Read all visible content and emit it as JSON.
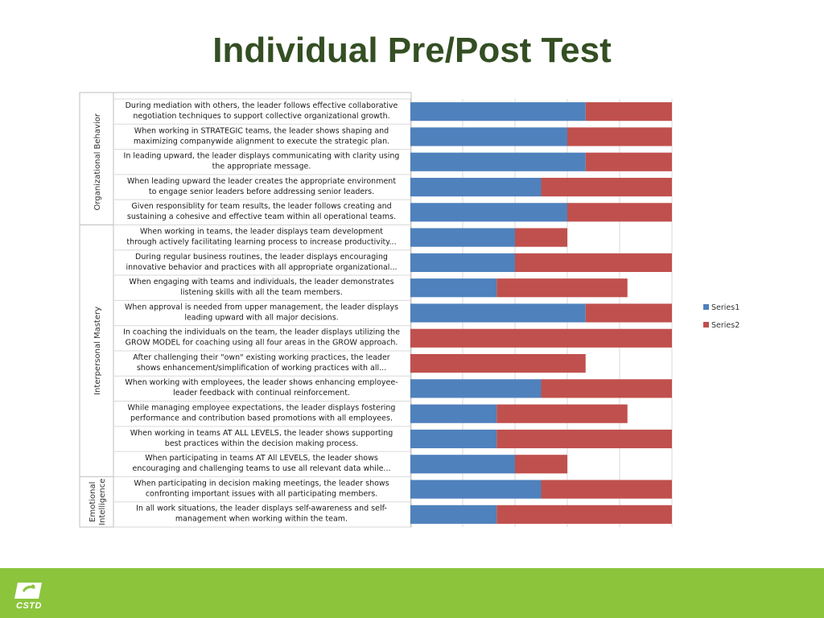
{
  "slide": {
    "title": "Individual Pre/Post Test"
  },
  "footer": {
    "logo_text": "CSTD"
  },
  "colors": {
    "series1": "#4f81bd",
    "series2": "#c0504d",
    "title": "#344f23",
    "footer": "#8cc43c"
  },
  "chart_data": {
    "type": "bar",
    "orientation": "horizontal",
    "stacked": true,
    "xlim": [
      0,
      10
    ],
    "x_ticks": [
      0,
      2,
      4,
      6,
      8,
      10
    ],
    "grid": true,
    "legend_position": "right",
    "groups": [
      {
        "name": "Organizational Behavior",
        "start": 0,
        "end": 4
      },
      {
        "name": "Interpersonal Mastery",
        "start": 5,
        "end": 14
      },
      {
        "name": "Emotional Intelligence",
        "start": 15,
        "end": 16
      }
    ],
    "categories": [
      [
        "During mediation with others, the leader follows effective collaborative",
        "negotiation techniques to support collective organizational growth."
      ],
      [
        "When working in STRATEGIC teams, the leader shows shaping and",
        "maximizing companywide alignment to execute the strategic plan."
      ],
      [
        "In leading upward, the leader displays communicating with clarity using",
        "the appropriate message."
      ],
      [
        "When leading upward the leader creates the appropriate environment",
        "to engage senior leaders before addressing senior leaders."
      ],
      [
        "Given responsiblity for team results, the leader follows creating and",
        "sustaining a cohesive and effective team within all operational teams."
      ],
      [
        "When working in teams, the leader displays team development",
        "through actively facilitating learning process to increase productivity..."
      ],
      [
        "During regular business routines, the leader displays encouraging",
        "innovative behavior and practices with all appropriate organizational..."
      ],
      [
        "When engaging with teams and individuals, the leader demonstrates",
        "listening skills with all the team members."
      ],
      [
        "When approval is needed from upper management, the leader displays",
        "leading upward with all major decisions."
      ],
      [
        "In coaching the individuals on the team, the leader displays utilizing the",
        "GROW MODEL for coaching using all four areas in the GROW approach."
      ],
      [
        "After challenging their \"own\" existing working practices, the leader",
        "shows enhancement/simplification of working practices with all..."
      ],
      [
        "When working with employees, the leader shows enhancing employee-",
        "leader feedback with continual reinforcement."
      ],
      [
        "While managing employee expectations, the leader displays fostering",
        "performance and contribution based promotions with all employees."
      ],
      [
        "When working in teams AT ALL LEVELS, the leader shows supporting",
        "best practices within the decision making process."
      ],
      [
        "When participating in teams AT All LEVELS, the leader shows",
        "encouraging and challenging teams to use all relevant data while..."
      ],
      [
        "When participating in decision making meetings, the leader shows",
        "confronting important issues with all participating members."
      ],
      [
        "In all work situations, the leader displays self-awareness and self-",
        "management when working within the team."
      ]
    ],
    "series": [
      {
        "name": "Series1",
        "color": "#4f81bd",
        "values": [
          6.7,
          6,
          6.7,
          5,
          6,
          4,
          4,
          3.3,
          6.7,
          0,
          0,
          5,
          3.3,
          3.3,
          4,
          5,
          3.3
        ]
      },
      {
        "name": "Series2",
        "color": "#c0504d",
        "values": [
          3.3,
          4,
          3.3,
          5,
          4,
          2,
          6,
          5,
          3.3,
          10,
          6.7,
          5,
          5,
          6.7,
          2,
          5,
          6.7
        ]
      }
    ]
  }
}
